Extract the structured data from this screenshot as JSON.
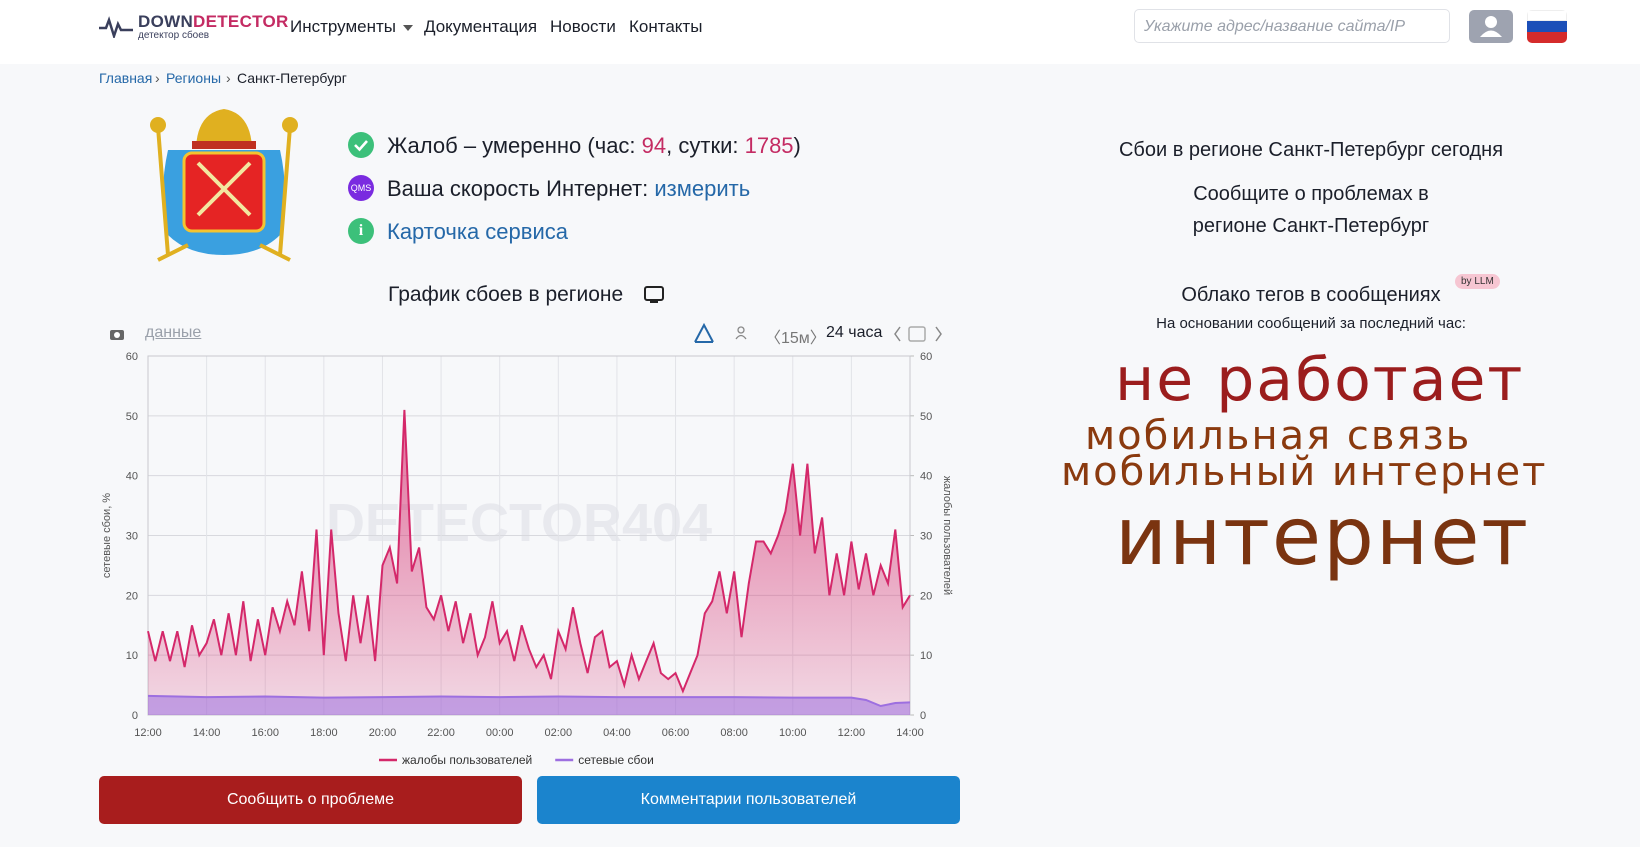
{
  "header": {
    "logo_first": "DOWN",
    "logo_second": "DETECTOR",
    "logo_subtitle": "детектор сбоев",
    "nav": [
      "Инструменты",
      "Документация",
      "Новости",
      "Контакты"
    ],
    "search_placeholder": "Укажите адрес/название сайта/IP"
  },
  "breadcrumb": [
    "Главная",
    "Регионы",
    "Санкт-Петербург"
  ],
  "status": {
    "complaints_prefix": "Жалоб – умеренно (час: ",
    "complaints_hour": 94,
    "complaints_mid": ", сутки: ",
    "complaints_day": 1785,
    "complaints_suffix": ")",
    "qms_icon": "QMS",
    "speed_text": "Ваша скорость Интернет: ",
    "speed_link": "измерить",
    "card_link": "Карточка сервиса"
  },
  "chart_title": "График сбоев в регионе",
  "toolbar": {
    "data_link": "данные",
    "interval": "〈15м〉",
    "period": "24 часа"
  },
  "watermark": "DETECTOR404",
  "chart_data": {
    "type": "area",
    "y_label": "сетевые сбои, %",
    "y2_label": "жалобы пользователей",
    "xlim": [
      0,
      26
    ],
    "xticks": [
      {
        "value": 0,
        "label": "12:00"
      },
      {
        "value": 2,
        "label": "14:00"
      },
      {
        "value": 4,
        "label": "16:00"
      },
      {
        "value": 6,
        "label": "18:00"
      },
      {
        "value": 8,
        "label": "20:00"
      },
      {
        "value": 10,
        "label": "22:00"
      },
      {
        "value": 12,
        "label": "00:00"
      },
      {
        "value": 14,
        "label": "02:00"
      },
      {
        "value": 16,
        "label": "04:00"
      },
      {
        "value": 18,
        "label": "06:00"
      },
      {
        "value": 20,
        "label": "08:00"
      },
      {
        "value": 22,
        "label": "10:00"
      },
      {
        "value": 24,
        "label": "12:00"
      },
      {
        "value": 26,
        "label": "14:00"
      }
    ],
    "ylim": [
      0,
      60
    ],
    "yticks": [
      0,
      10,
      20,
      30,
      40,
      50,
      60
    ],
    "y2lim": [
      0,
      60
    ],
    "y2ticks": [
      0,
      10,
      20,
      30,
      40,
      50,
      60
    ],
    "grid": true,
    "series": [
      {
        "name": "жалобы пользователей",
        "color": "#d4286a",
        "axis": "y2",
        "x": [
          0,
          0.25,
          0.5,
          0.75,
          1,
          1.25,
          1.5,
          1.75,
          2,
          2.25,
          2.5,
          2.75,
          3,
          3.25,
          3.5,
          3.75,
          4,
          4.25,
          4.5,
          4.75,
          5,
          5.25,
          5.5,
          5.75,
          6,
          6.25,
          6.5,
          6.75,
          7,
          7.25,
          7.5,
          7.75,
          8,
          8.25,
          8.5,
          8.75,
          9,
          9.25,
          9.5,
          9.75,
          10,
          10.25,
          10.5,
          10.75,
          11,
          11.25,
          11.5,
          11.75,
          12,
          12.25,
          12.5,
          12.75,
          13,
          13.25,
          13.5,
          13.75,
          14,
          14.25,
          14.5,
          14.75,
          15,
          15.25,
          15.5,
          15.75,
          16,
          16.25,
          16.5,
          16.75,
          17,
          17.25,
          17.5,
          17.75,
          18,
          18.25,
          18.5,
          18.75,
          19,
          19.25,
          19.5,
          19.75,
          20,
          20.25,
          20.5,
          20.75,
          21,
          21.25,
          21.5,
          21.75,
          22,
          22.25,
          22.5,
          22.75,
          23,
          23.25,
          23.5,
          23.75,
          24,
          24.25,
          24.5,
          24.75,
          25,
          25.25,
          25.5,
          25.75,
          26
        ],
        "values": [
          14,
          9,
          14,
          9,
          14,
          8,
          15,
          10,
          12,
          16,
          10,
          17,
          10,
          19,
          9,
          16,
          10,
          18,
          14,
          19,
          15,
          24,
          14,
          31,
          10,
          31,
          17,
          9,
          20,
          12,
          20,
          9,
          25,
          28,
          22,
          51,
          24,
          28,
          18,
          16,
          20,
          14,
          19,
          12,
          17,
          10,
          13,
          19,
          12,
          14,
          9,
          15,
          11,
          8,
          10,
          6,
          14,
          11,
          18,
          12,
          7,
          13,
          14,
          8,
          9,
          5,
          10,
          6,
          9,
          12,
          7,
          6,
          7,
          4,
          7,
          10,
          17,
          19,
          24,
          17,
          24,
          13,
          22,
          29,
          29,
          27,
          30,
          34,
          42,
          30,
          42,
          27,
          33,
          20,
          27,
          20,
          29,
          21,
          27,
          20,
          25,
          22,
          31,
          18,
          20
        ]
      },
      {
        "name": "сетевые сбои",
        "color": "#9d6fe0",
        "axis": "y",
        "x": [
          0,
          2,
          4,
          6,
          8,
          10,
          12,
          14,
          16,
          18,
          20,
          22,
          24,
          24.5,
          25,
          25.5,
          26
        ],
        "values": [
          3.2,
          3,
          3.1,
          2.9,
          3,
          3.1,
          3,
          3.1,
          3,
          3,
          3,
          2.9,
          2.9,
          2.5,
          1.5,
          2,
          2.1
        ]
      }
    ]
  },
  "buttons": {
    "report": "Сообщить о проблеме",
    "comments": "Комментарии пользователей"
  },
  "side": {
    "title": "Сбои в регионе Санкт-Петербург сегодня",
    "report_line1": "Сообщите о проблемах в",
    "report_line2": "регионе Санкт-Петербург",
    "cloud_title": "Облако тегов в сообщениях",
    "cloud_badge": "by LLM",
    "cloud_subtitle": "На основании сообщений за последний час:",
    "tags": [
      "не работает",
      "мобильная связь",
      "мобильный интернет",
      "интернет"
    ]
  }
}
